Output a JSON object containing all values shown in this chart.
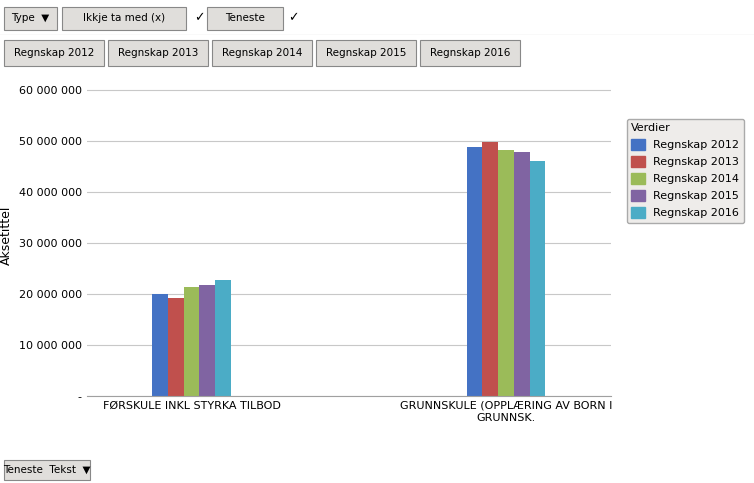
{
  "categories": [
    "FØRSKULE INKL STYRKA TILBOD",
    "GRUNNSKULE (OPPLÆRING AV BORN I\nGRUNNSK."
  ],
  "series": [
    {
      "name": "Regnskap 2012",
      "color": "#4472C4",
      "values": [
        20000000,
        48800000
      ]
    },
    {
      "name": "Regnskap 2013",
      "color": "#C0504D",
      "values": [
        19200000,
        49800000
      ]
    },
    {
      "name": "Regnskap 2014",
      "color": "#9BBB59",
      "values": [
        21300000,
        48200000
      ]
    },
    {
      "name": "Regnskap 2015",
      "color": "#8064A2",
      "values": [
        21800000,
        47800000
      ]
    },
    {
      "name": "Regnskap 2016",
      "color": "#4BACC6",
      "values": [
        22700000,
        46200000
      ]
    }
  ],
  "ylabel": "Aksetittel",
  "ylim": [
    0,
    63000000
  ],
  "yticks": [
    0,
    10000000,
    20000000,
    30000000,
    40000000,
    50000000,
    60000000
  ],
  "ytick_labels": [
    "-",
    "10 000 000",
    "20 000 000",
    "30 000 000",
    "40 000 000",
    "50 000 000",
    "60 000 000"
  ],
  "legend_title": "Verdier",
  "bg_color": "#FFFFFF",
  "plot_bg_color": "#FFFFFF",
  "grid_color": "#C8C8C8",
  "toolbar_bg": "#D4D0C8",
  "font_size": 9,
  "filter_buttons": [
    "Regnskap 2012",
    "Regnskap 2013",
    "Regnskap 2014",
    "Regnskap 2015",
    "Regnskap 2016"
  ]
}
